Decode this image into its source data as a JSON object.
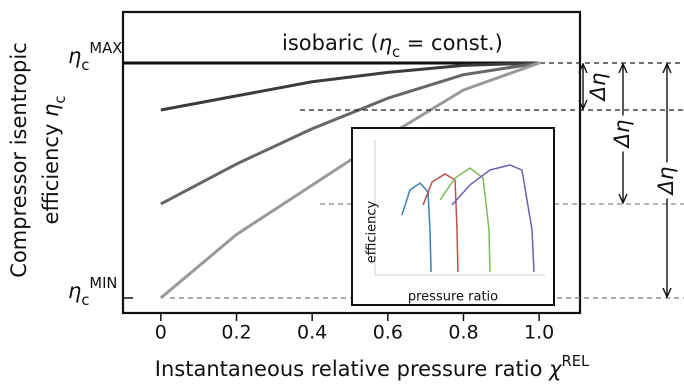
{
  "chart_data": [
    {
      "type": "line",
      "xlabel": {
        "text": "Instantaneous relative pressure ratio ",
        "symbol": "χ",
        "sup": "REL"
      },
      "ylabel": {
        "line1": "Compressor isentropic",
        "line2": "efficiency ",
        "symbol": "η",
        "sub": "c"
      },
      "xlim": [
        -0.1,
        1.108
      ],
      "ylim": [
        -0.064,
        1.217
      ],
      "xticks": [
        0,
        0.2,
        0.4,
        0.6,
        0.8,
        {
          "value": 1,
          "label": "1.0"
        }
      ],
      "yticks": [
        {
          "value": 1,
          "symbol": "η",
          "sub": "c",
          "sup": "MAX"
        },
        {
          "value": 0,
          "symbol": "η",
          "sub": "c",
          "sup": "MIN"
        }
      ],
      "annotation": {
        "prefix": "isobaric (",
        "symbol": "η",
        "sub": "c",
        "suffix": " = const.)"
      },
      "delta_labels": [
        "Δη",
        "Δη",
        "Δη"
      ],
      "series": [
        {
          "color": "#111111",
          "x": [
            -0.1,
            1
          ],
          "values": [
            1,
            1
          ]
        },
        {
          "color": "#3c3c3c",
          "x": [
            0,
            0.2,
            0.4,
            0.6,
            0.8,
            1
          ],
          "values": [
            0.8,
            0.86,
            0.92,
            0.96,
            0.99,
            1
          ]
        },
        {
          "color": "#666666",
          "x": [
            0,
            0.2,
            0.4,
            0.6,
            0.8,
            1
          ],
          "values": [
            0.4,
            0.57,
            0.72,
            0.85,
            0.95,
            1
          ]
        },
        {
          "color": "#9a9a9a",
          "x": [
            0,
            0.2,
            0.4,
            0.6,
            0.8,
            1
          ],
          "values": [
            0,
            0.27,
            0.48,
            0.69,
            0.885,
            1
          ]
        }
      ]
    },
    {
      "type": "line",
      "xlabel": "pressure ratio",
      "ylabel": "efficiency",
      "xlim": [
        0,
        1
      ],
      "ylim": [
        0,
        1
      ],
      "series": [
        {
          "color": "#3a7fc1",
          "x": [
            0.106,
            0.156,
            0.219,
            0.269,
            0.281,
            0.288
          ],
          "values": [
            0.483,
            0.655,
            0.703,
            0.641,
            0.379,
            0.09
          ]
        },
        {
          "color": "#c0504d",
          "x": [
            0.238,
            0.294,
            0.375,
            0.438,
            0.45,
            0.456
          ],
          "values": [
            0.552,
            0.71,
            0.766,
            0.724,
            0.379,
            0.09
          ]
        },
        {
          "color": "#7dbb5a",
          "x": [
            0.344,
            0.438,
            0.531,
            0.613,
            0.65,
            0.656
          ],
          "values": [
            0.586,
            0.738,
            0.807,
            0.738,
            0.379,
            0.09
          ]
        },
        {
          "color": "#6f5fb0",
          "x": [
            0.419,
            0.531,
            0.656,
            0.781,
            0.856,
            0.919,
            0.931
          ],
          "values": [
            0.552,
            0.69,
            0.793,
            0.828,
            0.793,
            0.379,
            0.09
          ]
        }
      ]
    }
  ]
}
